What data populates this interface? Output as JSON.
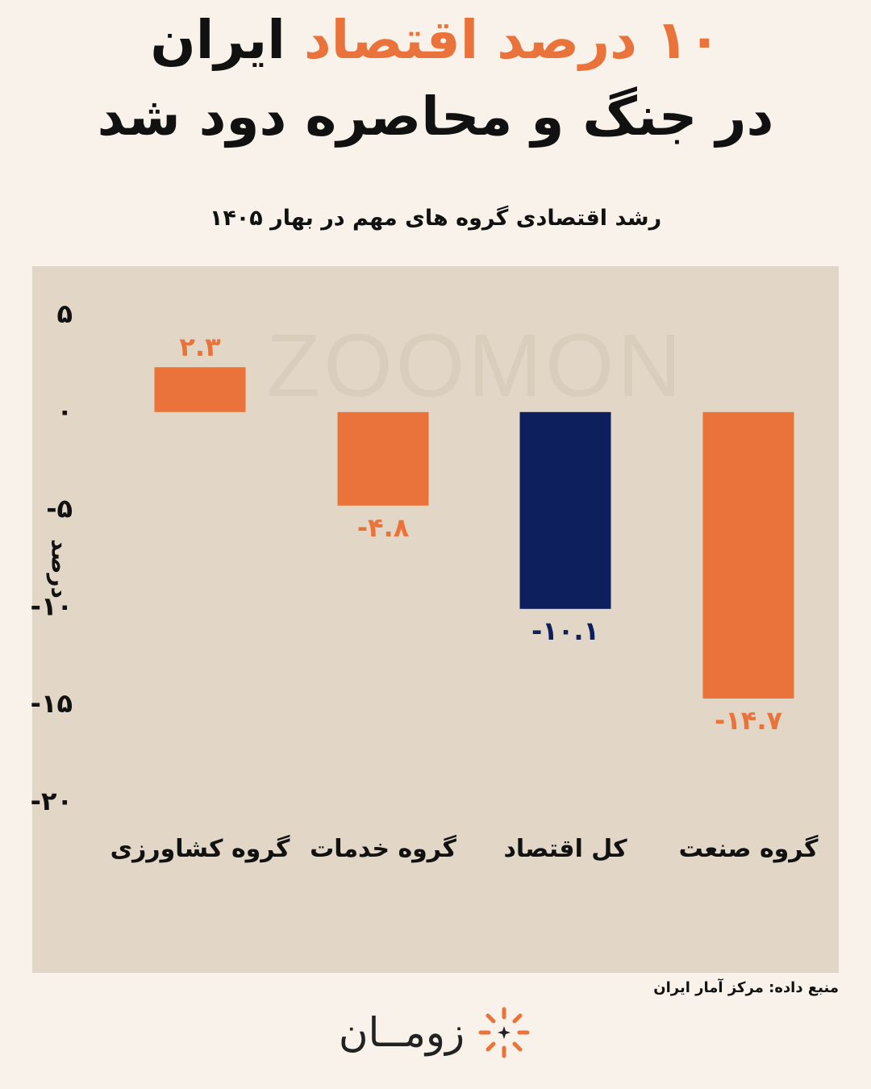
{
  "header": {
    "title_line1_accent": "۱۰ درصد اقتصاد",
    "title_line1_rest": "ایران",
    "title_line2": "در جنگ و محاصره دود شد",
    "subtitle": "رشد اقتصادی گروه های مهم در بهار ۱۴۰۵"
  },
  "watermark": "ZOOMON",
  "footer": {
    "source": "منبع داده: مرکز آمار ایران",
    "logo_text": "زومــان",
    "logo_icon": "sunburst-icon"
  },
  "colors": {
    "accent": "#e9733a",
    "navy": "#0d1f5c",
    "plot_bg": "#e2d7c6",
    "page_bg": "#f8f2ea"
  },
  "chart_data": {
    "type": "bar",
    "title": "رشد اقتصادی گروه های مهم در بهار ۱۴۰۵",
    "ylabel": "درصد",
    "ylim": [
      -20,
      5
    ],
    "yticks": [
      5,
      0,
      -5,
      -10,
      -15,
      -20
    ],
    "ytick_labels": [
      "۵",
      "۰",
      "-۵",
      "-۱۰",
      "-۱۵",
      "-۲۰"
    ],
    "categories": [
      "گروه کشاورزی",
      "گروه خدمات",
      "کل اقتصاد",
      "گروه صنعت"
    ],
    "values": [
      2.3,
      -4.8,
      -10.1,
      -14.7
    ],
    "value_labels": [
      "۲.۳",
      "-۴.۸",
      "-۱۰.۱",
      "-۱۴.۷"
    ],
    "bar_colors": [
      "#e9733a",
      "#e9733a",
      "#0d1f5c",
      "#e9733a"
    ],
    "grid": false
  }
}
